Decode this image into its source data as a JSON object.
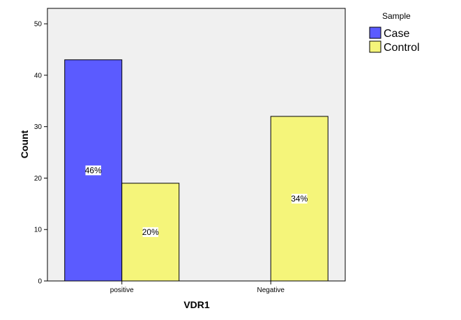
{
  "chart_data": {
    "type": "bar",
    "categories": [
      "positive",
      "Negative"
    ],
    "series": [
      {
        "name": "Case",
        "color": "#5b5bff",
        "values": [
          43,
          0
        ],
        "labels": [
          "46%",
          ""
        ]
      },
      {
        "name": "Control",
        "color": "#f5f57a",
        "values": [
          19,
          32
        ],
        "labels": [
          "20%",
          "34%"
        ]
      }
    ],
    "xlabel": "VDR1",
    "ylabel": "Count",
    "ylim": [
      0,
      53
    ],
    "yticks": [
      0,
      10,
      20,
      30,
      40,
      50
    ],
    "legend_title": "Sample",
    "legend_position": "top-right",
    "plot_background": "#f0f0f0",
    "grid": false
  }
}
